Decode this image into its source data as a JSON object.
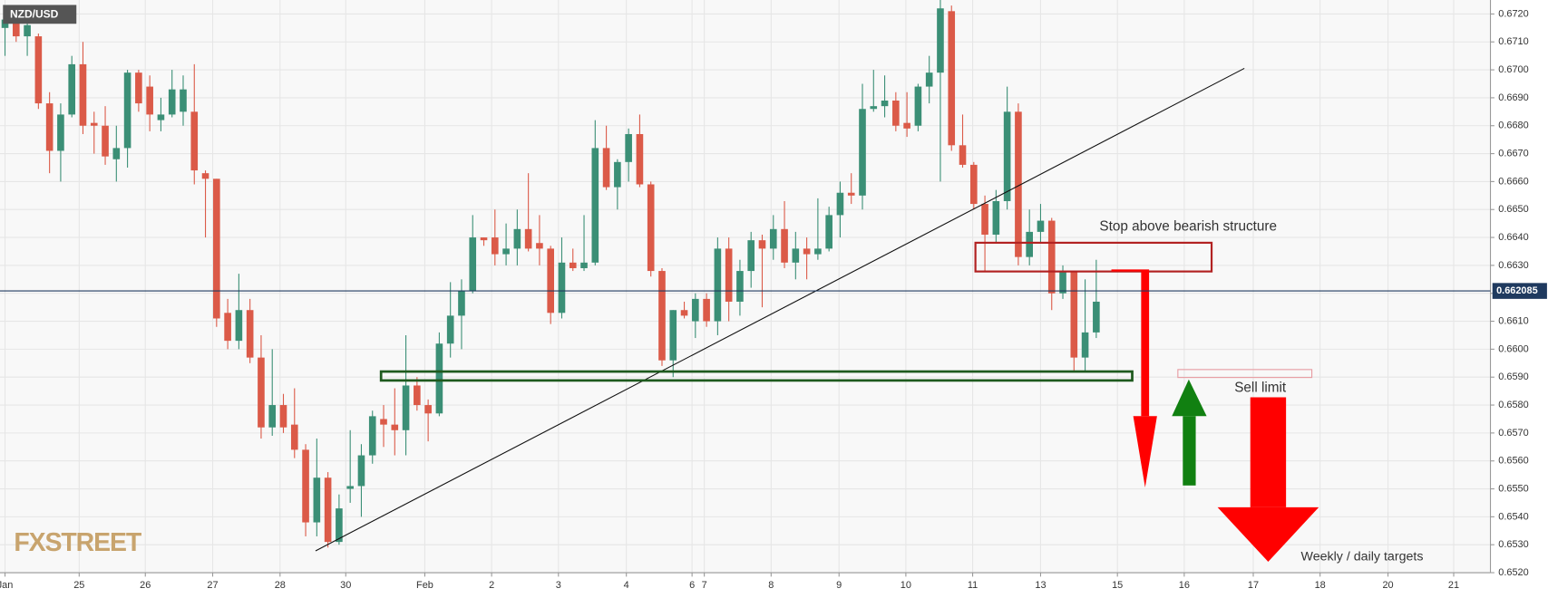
{
  "chart_data": {
    "type": "candlestick",
    "title": "NZD/USD",
    "up_color": "#3b8f76",
    "down_color": "#db5a48",
    "grid": true,
    "xlim": [
      -0.45,
      133.4
    ],
    "ylim": [
      0.652,
      0.6725
    ],
    "xticks": [
      {
        "value": 0,
        "label": "Jan"
      },
      {
        "value": 6.66,
        "label": "25"
      },
      {
        "value": 12.6,
        "label": "26"
      },
      {
        "value": 18.65,
        "label": "27"
      },
      {
        "value": 24.7,
        "label": "28"
      },
      {
        "value": 30.6,
        "label": "30"
      },
      {
        "value": 37.7,
        "label": "Feb"
      },
      {
        "value": 43.7,
        "label": "2"
      },
      {
        "value": 49.7,
        "label": "3"
      },
      {
        "value": 55.8,
        "label": "4"
      },
      {
        "value": 61.7,
        "label": "6"
      },
      {
        "value": 62.8,
        "label": "7"
      },
      {
        "value": 68.8,
        "label": "8"
      },
      {
        "value": 74.9,
        "label": "9"
      },
      {
        "value": 80.9,
        "label": "10"
      },
      {
        "value": 86.9,
        "label": "11"
      },
      {
        "value": 93.0,
        "label": "13"
      },
      {
        "value": 99.9,
        "label": "15"
      },
      {
        "value": 105.9,
        "label": "16"
      },
      {
        "value": 112.1,
        "label": "17"
      },
      {
        "value": 118.1,
        "label": "18"
      },
      {
        "value": 124.2,
        "label": "20"
      },
      {
        "value": 130.1,
        "label": "21"
      }
    ],
    "yticks": [
      {
        "value": 0.652,
        "label": "0.6520"
      },
      {
        "value": 0.653,
        "label": "0.6530"
      },
      {
        "value": 0.654,
        "label": "0.6540"
      },
      {
        "value": 0.655,
        "label": "0.6550"
      },
      {
        "value": 0.656,
        "label": "0.6560"
      },
      {
        "value": 0.657,
        "label": "0.6570"
      },
      {
        "value": 0.658,
        "label": "0.6580"
      },
      {
        "value": 0.659,
        "label": "0.6590"
      },
      {
        "value": 0.66,
        "label": "0.6600"
      },
      {
        "value": 0.661,
        "label": "0.6610"
      },
      {
        "value": 0.662,
        "label": "0.6620"
      },
      {
        "value": 0.663,
        "label": "0.6630"
      },
      {
        "value": 0.664,
        "label": "0.6640"
      },
      {
        "value": 0.665,
        "label": "0.6650"
      },
      {
        "value": 0.666,
        "label": "0.6660"
      },
      {
        "value": 0.667,
        "label": "0.6670"
      },
      {
        "value": 0.668,
        "label": "0.6680"
      },
      {
        "value": 0.669,
        "label": "0.6690"
      },
      {
        "value": 0.67,
        "label": "0.6700"
      },
      {
        "value": 0.671,
        "label": "0.6710"
      },
      {
        "value": 0.672,
        "label": "0.6720"
      }
    ],
    "current_price": 0.662085,
    "annotations": [
      "Stop above bearish structure",
      "Sell limit",
      "Weekly / daily targets"
    ],
    "watermark": "FXSTREET",
    "open": [
      0.6715,
      0.6718,
      0.6712,
      0.6712,
      0.6688,
      0.6671,
      0.6684,
      0.6702,
      0.6681,
      0.668,
      0.6668,
      0.6672,
      0.6699,
      0.6694,
      0.6682,
      0.6684,
      0.6685,
      0.6685,
      0.6663,
      0.6661,
      0.6613,
      0.6603,
      0.6614,
      0.6597,
      0.6572,
      0.658,
      0.6573,
      0.6564,
      0.6538,
      0.6554,
      0.6531,
      0.655,
      0.6551,
      0.6562,
      0.6575,
      0.6573,
      0.6571,
      0.6587,
      0.658,
      0.6577,
      0.6602,
      0.6612,
      0.6621,
      0.664,
      0.664,
      0.6634,
      0.6636,
      0.6643,
      0.6638,
      0.6636,
      0.6613,
      0.6631,
      0.6629,
      0.6631,
      0.6672,
      0.6658,
      0.6667,
      0.6677,
      0.6659,
      0.6628,
      0.6596,
      0.6614,
      0.661,
      0.6618,
      0.661,
      0.6636,
      0.6617,
      0.6628,
      0.6639,
      0.6636,
      0.6643,
      0.6631,
      0.6636,
      0.6634,
      0.6636,
      0.6648,
      0.6656,
      0.6655,
      0.6686,
      0.6687,
      0.6689,
      0.6681,
      0.668,
      0.6694,
      0.6699,
      0.6721,
      0.6673,
      0.6666,
      0.6652,
      0.6641,
      0.6653,
      0.6685,
      0.6633,
      0.6642,
      0.6646,
      0.662,
      0.6628,
      0.6597,
      0.6606
    ],
    "high": [
      0.6722,
      0.6722,
      0.6718,
      0.6713,
      0.6692,
      0.6688,
      0.6705,
      0.671,
      0.6685,
      0.6687,
      0.668,
      0.67,
      0.67,
      0.6698,
      0.669,
      0.67,
      0.6698,
      0.6702,
      0.6664,
      0.6661,
      0.6618,
      0.6627,
      0.6618,
      0.6605,
      0.66,
      0.6584,
      0.6586,
      0.6566,
      0.6568,
      0.6556,
      0.6548,
      0.6571,
      0.6566,
      0.6578,
      0.658,
      0.6586,
      0.6605,
      0.659,
      0.6582,
      0.6606,
      0.6624,
      0.6625,
      0.6648,
      0.664,
      0.665,
      0.6645,
      0.665,
      0.6663,
      0.6648,
      0.6637,
      0.664,
      0.6636,
      0.6648,
      0.6682,
      0.668,
      0.6668,
      0.6679,
      0.6684,
      0.666,
      0.6629,
      0.6614,
      0.6617,
      0.662,
      0.662,
      0.664,
      0.664,
      0.6632,
      0.6642,
      0.6641,
      0.6648,
      0.6653,
      0.6642,
      0.664,
      0.6654,
      0.6651,
      0.666,
      0.6663,
      0.6695,
      0.67,
      0.6698,
      0.6692,
      0.6692,
      0.6695,
      0.6705,
      0.6725,
      0.6723,
      0.6684,
      0.6667,
      0.6655,
      0.6657,
      0.6694,
      0.6688,
      0.665,
      0.6652,
      0.6647,
      0.663,
      0.6628,
      0.6625,
      0.6632
    ],
    "low": [
      0.6705,
      0.671,
      0.6705,
      0.6686,
      0.6663,
      0.666,
      0.6683,
      0.6677,
      0.667,
      0.6666,
      0.666,
      0.6665,
      0.6685,
      0.6678,
      0.6678,
      0.6683,
      0.668,
      0.6659,
      0.664,
      0.6608,
      0.66,
      0.66,
      0.6595,
      0.6568,
      0.6569,
      0.657,
      0.6561,
      0.6533,
      0.6533,
      0.6529,
      0.653,
      0.6545,
      0.654,
      0.6559,
      0.6565,
      0.6562,
      0.6562,
      0.6578,
      0.6567,
      0.6576,
      0.6597,
      0.66,
      0.662,
      0.6637,
      0.663,
      0.663,
      0.663,
      0.6635,
      0.663,
      0.6609,
      0.6611,
      0.6628,
      0.6628,
      0.663,
      0.6657,
      0.665,
      0.666,
      0.6658,
      0.6626,
      0.6594,
      0.659,
      0.6611,
      0.6604,
      0.6608,
      0.6605,
      0.661,
      0.6612,
      0.6622,
      0.6615,
      0.6632,
      0.6629,
      0.6625,
      0.6625,
      0.6632,
      0.6635,
      0.664,
      0.6652,
      0.665,
      0.6685,
      0.6683,
      0.6678,
      0.6676,
      0.6678,
      0.6688,
      0.666,
      0.6671,
      0.6665,
      0.665,
      0.6628,
      0.6638,
      0.665,
      0.663,
      0.663,
      0.6638,
      0.6614,
      0.6618,
      0.6592,
      0.6592,
      0.6604
    ],
    "close": [
      0.6718,
      0.6712,
      0.6716,
      0.6688,
      0.6671,
      0.6684,
      0.6702,
      0.668,
      0.668,
      0.6669,
      0.6672,
      0.6699,
      0.6688,
      0.6684,
      0.6684,
      0.6693,
      0.6693,
      0.6664,
      0.6661,
      0.6611,
      0.6603,
      0.6614,
      0.6597,
      0.6572,
      0.658,
      0.6572,
      0.6564,
      0.6538,
      0.6554,
      0.6531,
      0.6543,
      0.6551,
      0.6562,
      0.6576,
      0.6573,
      0.6571,
      0.6587,
      0.658,
      0.6577,
      0.6602,
      0.6612,
      0.6621,
      0.664,
      0.6639,
      0.6634,
      0.6636,
      0.6643,
      0.6636,
      0.6636,
      0.6613,
      0.6631,
      0.6629,
      0.6631,
      0.6672,
      0.6658,
      0.6667,
      0.6677,
      0.6659,
      0.6628,
      0.6596,
      0.6614,
      0.6612,
      0.6618,
      0.661,
      0.6636,
      0.6617,
      0.6628,
      0.6639,
      0.6636,
      0.6643,
      0.6631,
      0.6636,
      0.6634,
      0.6636,
      0.6648,
      0.6656,
      0.6655,
      0.6686,
      0.6687,
      0.6689,
      0.668,
      0.6679,
      0.6694,
      0.6699,
      0.6722,
      0.6673,
      0.6666,
      0.6652,
      0.6641,
      0.6653,
      0.6685,
      0.6633,
      0.6642,
      0.6646,
      0.662,
      0.6628,
      0.6597,
      0.6606,
      0.6617
    ]
  }
}
